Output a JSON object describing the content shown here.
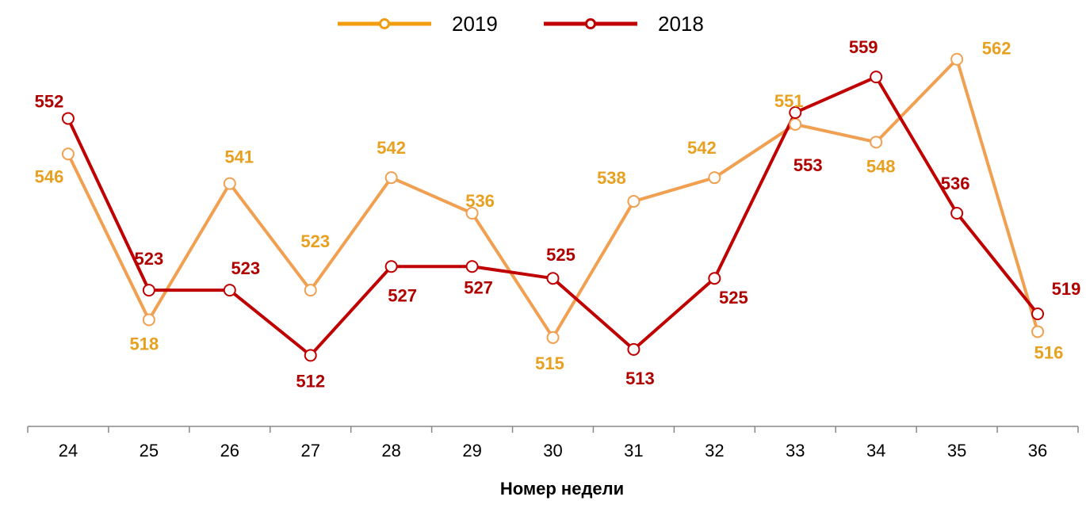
{
  "chart_data": {
    "type": "line",
    "title": "",
    "xlabel": "Номер недели",
    "ylabel": "",
    "categories": [
      "24",
      "25",
      "26",
      "27",
      "28",
      "29",
      "30",
      "31",
      "32",
      "33",
      "34",
      "35",
      "36"
    ],
    "ylim": [
      500,
      572
    ],
    "grid": false,
    "legend_position": "top",
    "series": [
      {
        "name": "2019",
        "color": "#F0A050",
        "label_color": "#E8A020",
        "marker": "hollow-circle",
        "values": [
          546,
          518,
          541,
          523,
          542,
          536,
          515,
          538,
          542,
          551,
          548,
          562,
          516
        ]
      },
      {
        "name": "2018",
        "color": "#C00000",
        "label_color": "#B00000",
        "marker": "hollow-circle",
        "values": [
          552,
          523,
          523,
          512,
          527,
          527,
          525,
          513,
          525,
          553,
          559,
          536,
          519
        ]
      }
    ]
  }
}
